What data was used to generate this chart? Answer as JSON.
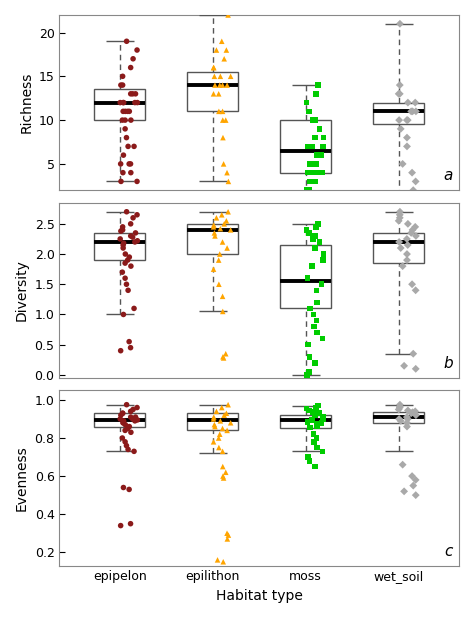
{
  "categories": [
    "epipelon",
    "epilithon",
    "moss",
    "wet_soil"
  ],
  "colors": [
    "#8B1A1A",
    "#FFA500",
    "#00CC00",
    "#A9A9A9"
  ],
  "markers": [
    "o",
    "^",
    "s",
    "D"
  ],
  "richness": {
    "epipelon": {
      "median": 12,
      "q1": 10,
      "q3": 13.5,
      "whisker_lo": 3,
      "whisker_hi": 19,
      "data": [
        19,
        18,
        17,
        16,
        15,
        14,
        14,
        13,
        13,
        13,
        12,
        12,
        12,
        12,
        12,
        11,
        11,
        11,
        11,
        10,
        10,
        10,
        9,
        8,
        7,
        7,
        6,
        5,
        5,
        5,
        4,
        4,
        3,
        3
      ]
    },
    "epilithon": {
      "median": 14,
      "q1": 11,
      "q3": 15.5,
      "whisker_lo": 3,
      "whisker_hi": 22,
      "data": [
        22,
        19,
        18,
        18,
        17,
        16,
        16,
        15,
        15,
        15,
        14,
        14,
        14,
        14,
        13,
        13,
        11,
        11,
        10,
        10,
        8,
        5,
        4,
        3
      ]
    },
    "moss": {
      "median": 6.5,
      "q1": 4,
      "q3": 10,
      "whisker_lo": 1.5,
      "whisker_hi": 14,
      "data": [
        14,
        13,
        12,
        11,
        10,
        10,
        9,
        8,
        8,
        7,
        7,
        7,
        6,
        6,
        6,
        5,
        5,
        5,
        4,
        4,
        4,
        4,
        3,
        3,
        2,
        2,
        1.5
      ]
    },
    "wet_soil": {
      "median": 11,
      "q1": 9.5,
      "q3": 12,
      "whisker_lo": 1.5,
      "whisker_hi": 21,
      "data": [
        21,
        14,
        13,
        13,
        12,
        12,
        11,
        11,
        11,
        10,
        10,
        10,
        9,
        8,
        7,
        5,
        4,
        3,
        2,
        1.5
      ]
    }
  },
  "diversity": {
    "epipelon": {
      "median": 2.2,
      "q1": 1.9,
      "q3": 2.35,
      "whisker_lo": 1.0,
      "whisker_hi": 2.7,
      "data": [
        2.7,
        2.65,
        2.6,
        2.5,
        2.45,
        2.4,
        2.38,
        2.35,
        2.3,
        2.28,
        2.25,
        2.22,
        2.2,
        2.18,
        2.15,
        2.1,
        2.0,
        1.95,
        1.9,
        1.85,
        1.8,
        1.7,
        1.6,
        1.5,
        1.4,
        1.1,
        1.0,
        0.55,
        0.45,
        0.4
      ]
    },
    "epilithon": {
      "median": 2.4,
      "q1": 2.0,
      "q3": 2.5,
      "whisker_lo": 1.05,
      "whisker_hi": 2.7,
      "data": [
        2.7,
        2.65,
        2.6,
        2.55,
        2.5,
        2.48,
        2.45,
        2.42,
        2.4,
        2.35,
        2.3,
        2.2,
        2.1,
        2.0,
        1.9,
        1.75,
        1.5,
        1.3,
        1.05,
        0.35,
        0.3,
        0.28
      ]
    },
    "moss": {
      "median": 1.55,
      "q1": 1.1,
      "q3": 2.15,
      "whisker_lo": 0.0,
      "whisker_hi": 2.5,
      "data": [
        2.5,
        2.45,
        2.4,
        2.35,
        2.3,
        2.25,
        2.2,
        2.1,
        2.0,
        1.9,
        1.8,
        1.6,
        1.5,
        1.4,
        1.2,
        1.1,
        1.0,
        0.9,
        0.8,
        0.7,
        0.6,
        0.5,
        0.3,
        0.2,
        0.05,
        0.0
      ]
    },
    "wet_soil": {
      "median": 2.2,
      "q1": 1.85,
      "q3": 2.35,
      "whisker_lo": 0.35,
      "whisker_hi": 2.7,
      "data": [
        2.7,
        2.65,
        2.6,
        2.55,
        2.5,
        2.45,
        2.4,
        2.35,
        2.3,
        2.25,
        2.2,
        2.15,
        2.1,
        2.0,
        1.9,
        1.8,
        1.5,
        1.4,
        0.35,
        0.15,
        0.1
      ]
    }
  },
  "evenness": {
    "epipelon": {
      "median": 0.895,
      "q1": 0.86,
      "q3": 0.93,
      "whisker_lo": 0.73,
      "whisker_hi": 0.975,
      "data": [
        0.975,
        0.96,
        0.95,
        0.94,
        0.93,
        0.93,
        0.92,
        0.91,
        0.91,
        0.9,
        0.9,
        0.895,
        0.89,
        0.89,
        0.88,
        0.88,
        0.87,
        0.86,
        0.85,
        0.84,
        0.83,
        0.8,
        0.78,
        0.76,
        0.74,
        0.73,
        0.54,
        0.53,
        0.35,
        0.34
      ]
    },
    "epilithon": {
      "median": 0.895,
      "q1": 0.84,
      "q3": 0.93,
      "whisker_lo": 0.72,
      "whisker_hi": 0.975,
      "data": [
        0.975,
        0.96,
        0.94,
        0.93,
        0.92,
        0.91,
        0.9,
        0.89,
        0.88,
        0.87,
        0.86,
        0.85,
        0.84,
        0.82,
        0.8,
        0.78,
        0.75,
        0.73,
        0.65,
        0.62,
        0.6,
        0.59,
        0.3,
        0.29,
        0.27,
        0.16,
        0.15
      ]
    },
    "moss": {
      "median": 0.895,
      "q1": 0.855,
      "q3": 0.92,
      "whisker_lo": 0.73,
      "whisker_hi": 0.97,
      "data": [
        0.97,
        0.96,
        0.955,
        0.945,
        0.94,
        0.935,
        0.93,
        0.92,
        0.91,
        0.9,
        0.895,
        0.885,
        0.88,
        0.875,
        0.86,
        0.855,
        0.82,
        0.8,
        0.78,
        0.75,
        0.73,
        0.7,
        0.68,
        0.65
      ]
    },
    "wet_soil": {
      "median": 0.91,
      "q1": 0.88,
      "q3": 0.935,
      "whisker_lo": 0.73,
      "whisker_hi": 0.975,
      "data": [
        0.975,
        0.965,
        0.96,
        0.95,
        0.945,
        0.94,
        0.935,
        0.93,
        0.92,
        0.91,
        0.9,
        0.9,
        0.89,
        0.88,
        0.86,
        0.66,
        0.6,
        0.58,
        0.55,
        0.52,
        0.5
      ]
    }
  },
  "richness_ylim": [
    2,
    22
  ],
  "richness_yticks": [
    5,
    10,
    15,
    20
  ],
  "diversity_ylim": [
    -0.05,
    2.85
  ],
  "diversity_yticks": [
    0.0,
    0.5,
    1.0,
    1.5,
    2.0,
    2.5
  ],
  "evenness_ylim": [
    0.13,
    1.05
  ],
  "evenness_yticks": [
    0.2,
    0.4,
    0.6,
    0.8,
    1.0
  ],
  "panel_labels": [
    "a",
    "b",
    "c"
  ],
  "ylabel_richness": "Richness",
  "ylabel_diversity": "Diversity",
  "ylabel_evenness": "Evenness",
  "xlabel": "Habitat type",
  "box_color": "#555555",
  "whisker_color": "#555555",
  "spine_color": "#888888",
  "jitter_seed": 42,
  "jitter_strength": 0.13,
  "box_width": 0.55,
  "linewidth": 1.0,
  "median_lw": 2.8,
  "point_size": 16
}
